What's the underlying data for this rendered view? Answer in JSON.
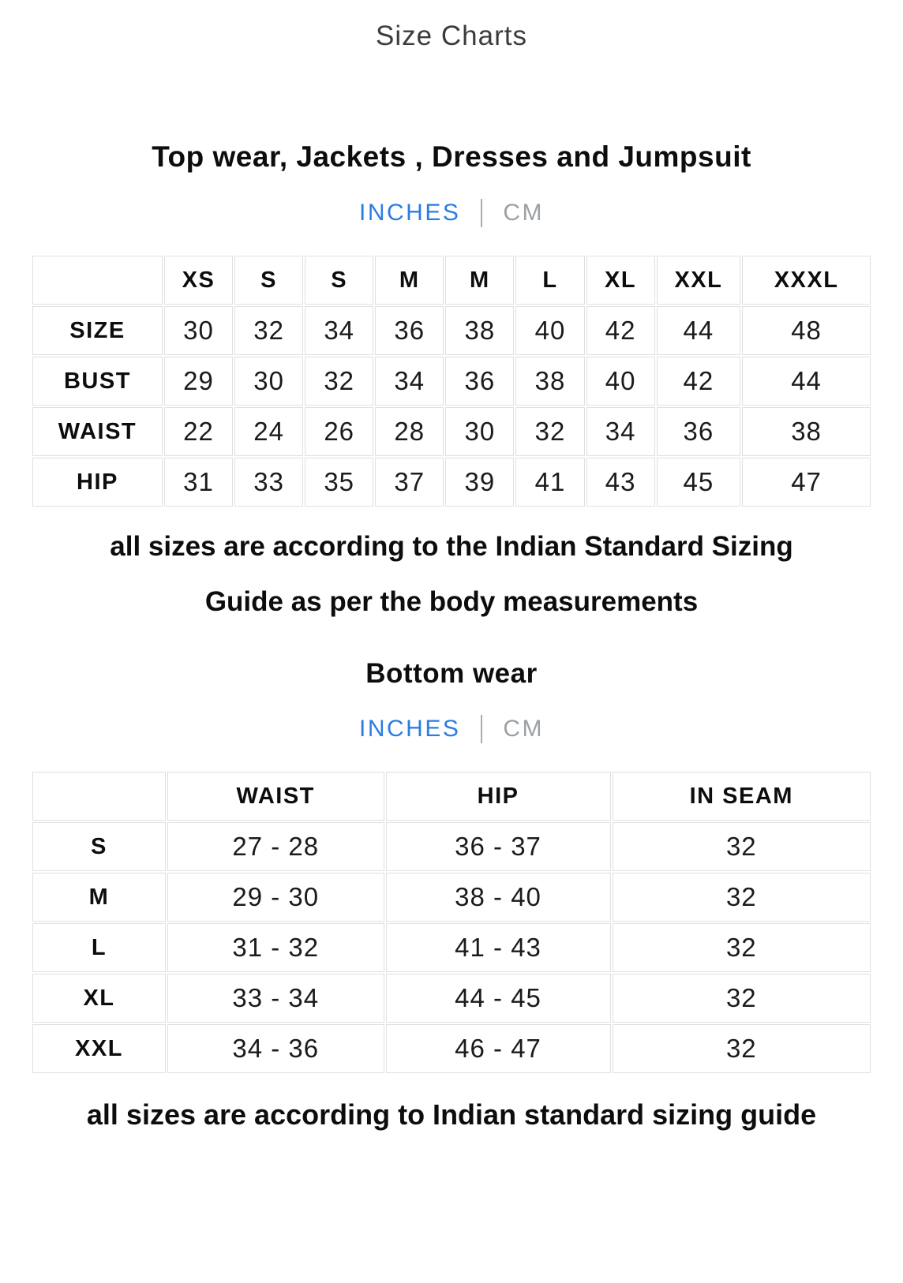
{
  "page": {
    "title": "Size Charts"
  },
  "colors": {
    "accent_blue": "#2b7de1",
    "muted_gray": "#9ca1a5",
    "heading_black": "#0d0d0d",
    "title_gray": "#3c3c3c",
    "table_border": "#e0e0e0"
  },
  "sections": [
    {
      "heading": "Top wear, Jackets , Dresses and Jumpsuit",
      "unit_toggle": {
        "inches_label": "INCHES",
        "cm_label": "CM",
        "selected": "INCHES"
      },
      "table": {
        "columns": [
          "",
          "XS",
          "S",
          "S",
          "M",
          "M",
          "L",
          "XL",
          "XXL",
          "XXXL"
        ],
        "rows": [
          {
            "label": "SIZE",
            "values": [
              "30",
              "32",
              "34",
              "36",
              "38",
              "40",
              "42",
              "44",
              "48"
            ]
          },
          {
            "label": "BUST",
            "values": [
              "29",
              "30",
              "32",
              "34",
              "36",
              "38",
              "40",
              "42",
              "44"
            ]
          },
          {
            "label": "WAIST",
            "values": [
              "22",
              "24",
              "26",
              "28",
              "30",
              "32",
              "34",
              "36",
              "38"
            ]
          },
          {
            "label": "HIP",
            "values": [
              "31",
              "33",
              "35",
              "37",
              "39",
              "41",
              "43",
              "45",
              "47"
            ]
          }
        ]
      },
      "note": "all sizes are according to the Indian Standard Sizing Guide as per the body measurements"
    },
    {
      "heading": "Bottom wear",
      "unit_toggle": {
        "inches_label": "INCHES",
        "cm_label": "CM",
        "selected": "INCHES"
      },
      "table": {
        "columns": [
          "",
          "WAIST",
          "HIP",
          "IN SEAM"
        ],
        "rows": [
          {
            "label": "S",
            "values": [
              "27 - 28",
              "36 - 37",
              "32"
            ]
          },
          {
            "label": "M",
            "values": [
              "29 - 30",
              "38 - 40",
              "32"
            ]
          },
          {
            "label": "L",
            "values": [
              "31 - 32",
              "41 - 43",
              "32"
            ]
          },
          {
            "label": "XL",
            "values": [
              "33 - 34",
              "44 - 45",
              "32"
            ]
          },
          {
            "label": "XXL",
            "values": [
              "34 - 36",
              "46 - 47",
              "32"
            ]
          }
        ]
      },
      "note": "all sizes are according to Indian standard sizing guide"
    }
  ]
}
